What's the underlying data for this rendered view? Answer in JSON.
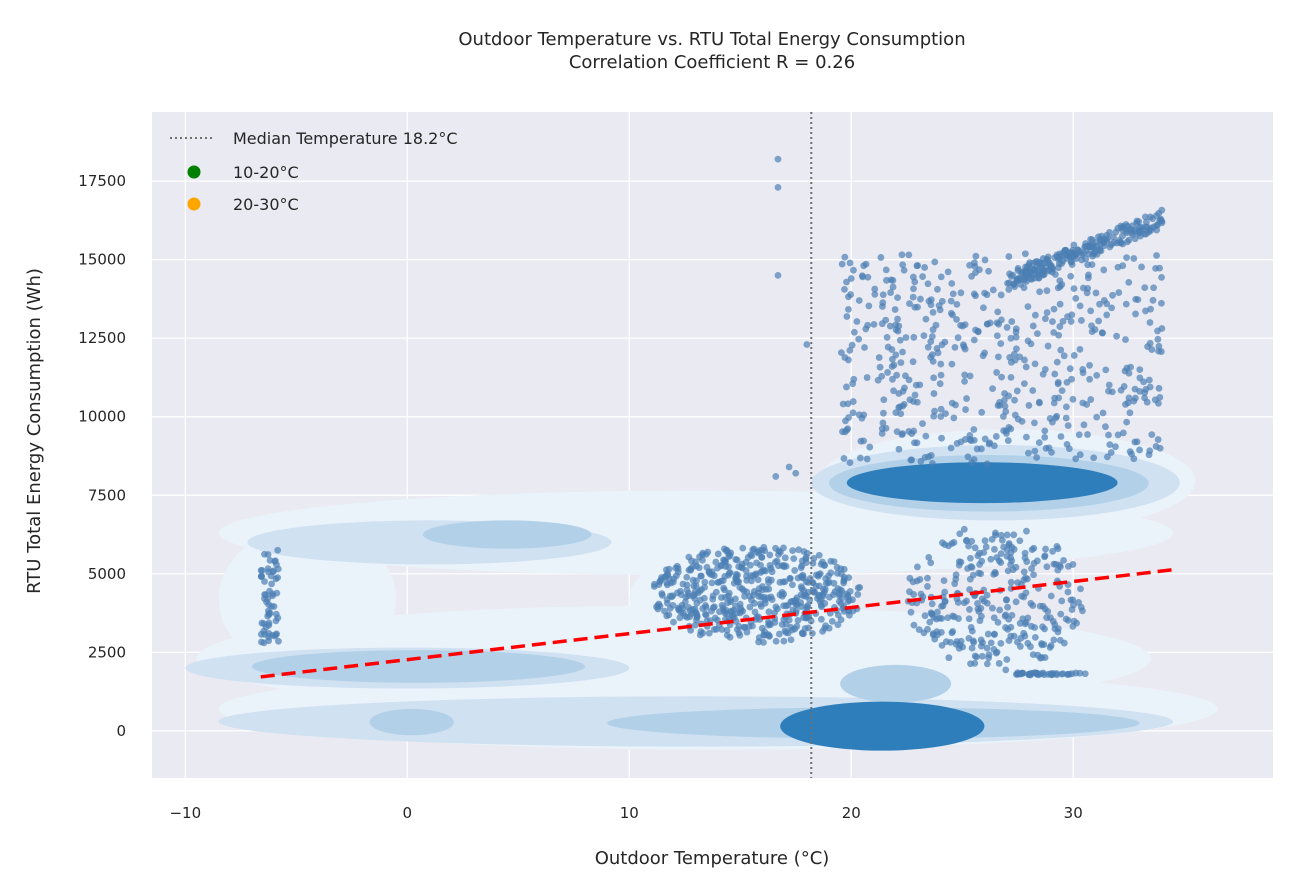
{
  "chart_data": {
    "type": "scatter",
    "title": "Outdoor Temperature vs. RTU Total Energy Consumption",
    "subtitle": "Correlation Coefficient R = 0.26",
    "xlabel": "Outdoor Temperature (°C)",
    "ylabel": "RTU Total Energy Consumption (Wh)",
    "xlim": [
      -11.5,
      39
    ],
    "ylim": [
      -1500,
      19700
    ],
    "xticks": [
      -10,
      0,
      10,
      20,
      30
    ],
    "xtick_labels": [
      "−10",
      "0",
      "10",
      "20",
      "30"
    ],
    "yticks": [
      0,
      2500,
      5000,
      7500,
      10000,
      12500,
      15000,
      17500
    ],
    "ytick_labels": [
      "0",
      "2500",
      "5000",
      "7500",
      "10000",
      "12500",
      "15000",
      "17500"
    ],
    "grid": true,
    "legend_position": "top-left",
    "legend": [
      {
        "label": "Median Temperature 18.2°C",
        "kind": "dotted-line",
        "color": "#707070"
      },
      {
        "label": "10-20°C",
        "kind": "marker",
        "color": "#008000"
      },
      {
        "label": "20-30°C",
        "kind": "marker",
        "color": "#ffa500"
      }
    ],
    "median_temperature": 18.2,
    "trend_line": {
      "x": [
        -6.6,
        34.5
      ],
      "y": [
        1720,
        5130
      ],
      "color": "#ff0000",
      "style": "dashed"
    },
    "scatter_color": "#4c7fb3",
    "scatter_clusters": [
      {
        "name": "cool-band",
        "x_range": [
          11,
          20.5
        ],
        "y_range": [
          2800,
          5900
        ],
        "count": 520,
        "shape": "blob"
      },
      {
        "name": "warm-band",
        "x_range": [
          22.5,
          30.5
        ],
        "y_range": [
          1900,
          6600
        ],
        "count": 300,
        "shape": "blob"
      },
      {
        "name": "hot-spread",
        "x_range": [
          19.5,
          34
        ],
        "y_range": [
          8500,
          15200
        ],
        "count": 520,
        "shape": "scatter"
      },
      {
        "name": "high-diagonal",
        "x_range": [
          27,
          34
        ],
        "y_range": [
          14300,
          16300
        ],
        "count": 220,
        "shape": "diagonal"
      },
      {
        "name": "cold-edge",
        "x_range": [
          -6.6,
          -5.8
        ],
        "y_range": [
          2800,
          6000
        ],
        "count": 60,
        "shape": "scatter"
      },
      {
        "name": "floor-line",
        "x_range": [
          27.3,
          30.6
        ],
        "y_range": [
          1780,
          1850
        ],
        "count": 40,
        "shape": "scatter"
      }
    ],
    "scatter_outliers": [
      {
        "x": 16.7,
        "y": 18200
      },
      {
        "x": 16.7,
        "y": 17300
      },
      {
        "x": 16.7,
        "y": 14500
      },
      {
        "x": 17.5,
        "y": 8200
      },
      {
        "x": 16.6,
        "y": 8100
      },
      {
        "x": 17.2,
        "y": 8400
      },
      {
        "x": 18.0,
        "y": 12300
      }
    ],
    "density_colors": [
      "#eaf2fa",
      "#d0e1f2",
      "#b2d1e8",
      "#2e7ebc"
    ],
    "density_levels": [
      [
        {
          "cx": 13,
          "cy": 6300,
          "rx": 21.5,
          "ry": 1350
        },
        {
          "cx": 27,
          "cy": 7950,
          "rx": 8.5,
          "ry": 1650
        },
        {
          "cx": 12,
          "cy": 2300,
          "rx": 21.5,
          "ry": 1700
        },
        {
          "cx": 14,
          "cy": 700,
          "rx": 22.5,
          "ry": 1300
        },
        {
          "cx": 15,
          "cy": 4200,
          "rx": 5,
          "ry": 1700
        },
        {
          "cx": -4.5,
          "cy": 4200,
          "rx": 4,
          "ry": 2300
        }
      ],
      [
        {
          "cx": 1,
          "cy": 6000,
          "rx": 8.2,
          "ry": 700
        },
        {
          "cx": 26.5,
          "cy": 7900,
          "rx": 8.3,
          "ry": 1200
        },
        {
          "cx": 13,
          "cy": 300,
          "rx": 21.5,
          "ry": 800
        },
        {
          "cx": 0,
          "cy": 2000,
          "rx": 10,
          "ry": 650
        }
      ],
      [
        {
          "cx": 4.5,
          "cy": 6250,
          "rx": 3.8,
          "ry": 450
        },
        {
          "cx": 26.2,
          "cy": 7880,
          "rx": 7.2,
          "ry": 900
        },
        {
          "cx": 21,
          "cy": 250,
          "rx": 12,
          "ry": 500
        },
        {
          "cx": 0.2,
          "cy": 280,
          "rx": 1.9,
          "ry": 420
        },
        {
          "cx": 0.5,
          "cy": 2050,
          "rx": 7.5,
          "ry": 520
        },
        {
          "cx": 22,
          "cy": 1500,
          "rx": 2.5,
          "ry": 600
        }
      ],
      [
        {
          "cx": 25.9,
          "cy": 7900,
          "rx": 6.1,
          "ry": 650
        },
        {
          "cx": 21.4,
          "cy": 150,
          "rx": 4.6,
          "ry": 780
        }
      ]
    ]
  }
}
